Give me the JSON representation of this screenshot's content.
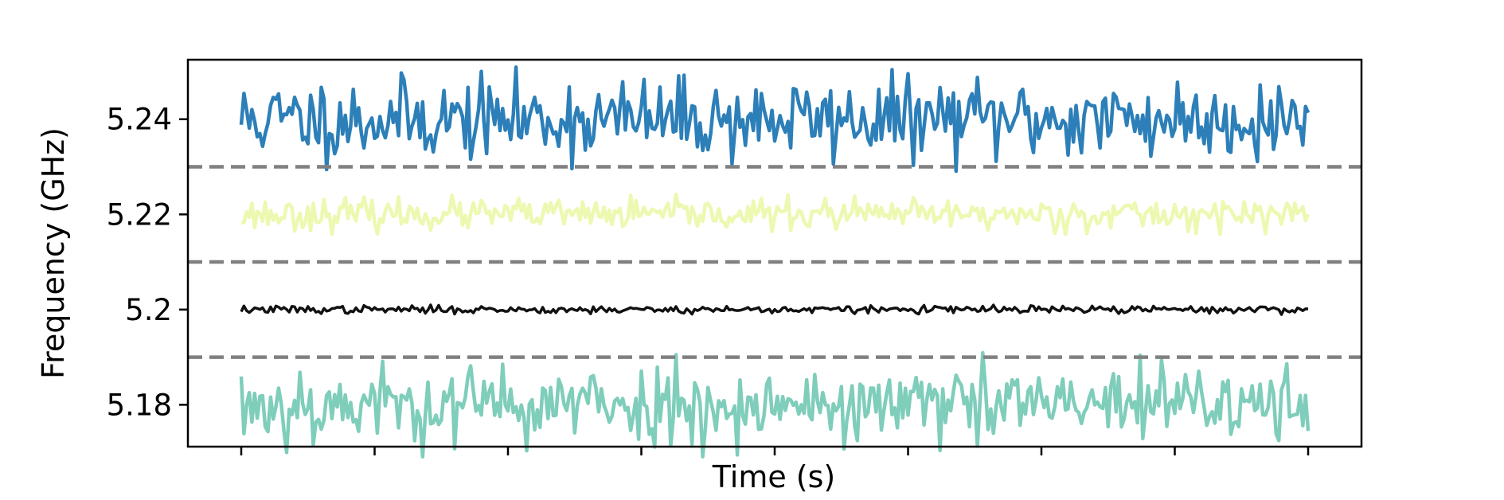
{
  "chart_data": {
    "type": "line",
    "title": "",
    "xlabel": "Time (s)",
    "ylabel": "Frequency (GHz)",
    "ylim": [
      5.1712,
      5.2525
    ],
    "xlim": [
      -0.04,
      0.84
    ],
    "x_tick_count": 9,
    "yticks": [
      {
        "value": 5.18,
        "label": "5.18"
      },
      {
        "value": 5.2,
        "label": "5.2"
      },
      {
        "value": 5.22,
        "label": "5.22"
      },
      {
        "value": 5.24,
        "label": "5.24"
      }
    ],
    "separators": [
      5.19,
      5.21,
      5.23
    ],
    "separator_color": "#808080",
    "grid": false,
    "legend": "none",
    "series": [
      {
        "center": 5.24,
        "amplitude": 0.0042,
        "color": "#2c7fb8",
        "width": 4.5,
        "seed": 11
      },
      {
        "center": 5.22,
        "amplitude": 0.0016,
        "color": "#edf8b1",
        "width": 4.5,
        "seed": 23
      },
      {
        "center": 5.2,
        "amplitude": 0.0004,
        "color": "#111111",
        "width": 3.5,
        "seed": 37
      },
      {
        "center": 5.18,
        "amplitude": 0.0042,
        "color": "#7fcdbb",
        "width": 4.5,
        "seed": 53
      }
    ]
  }
}
